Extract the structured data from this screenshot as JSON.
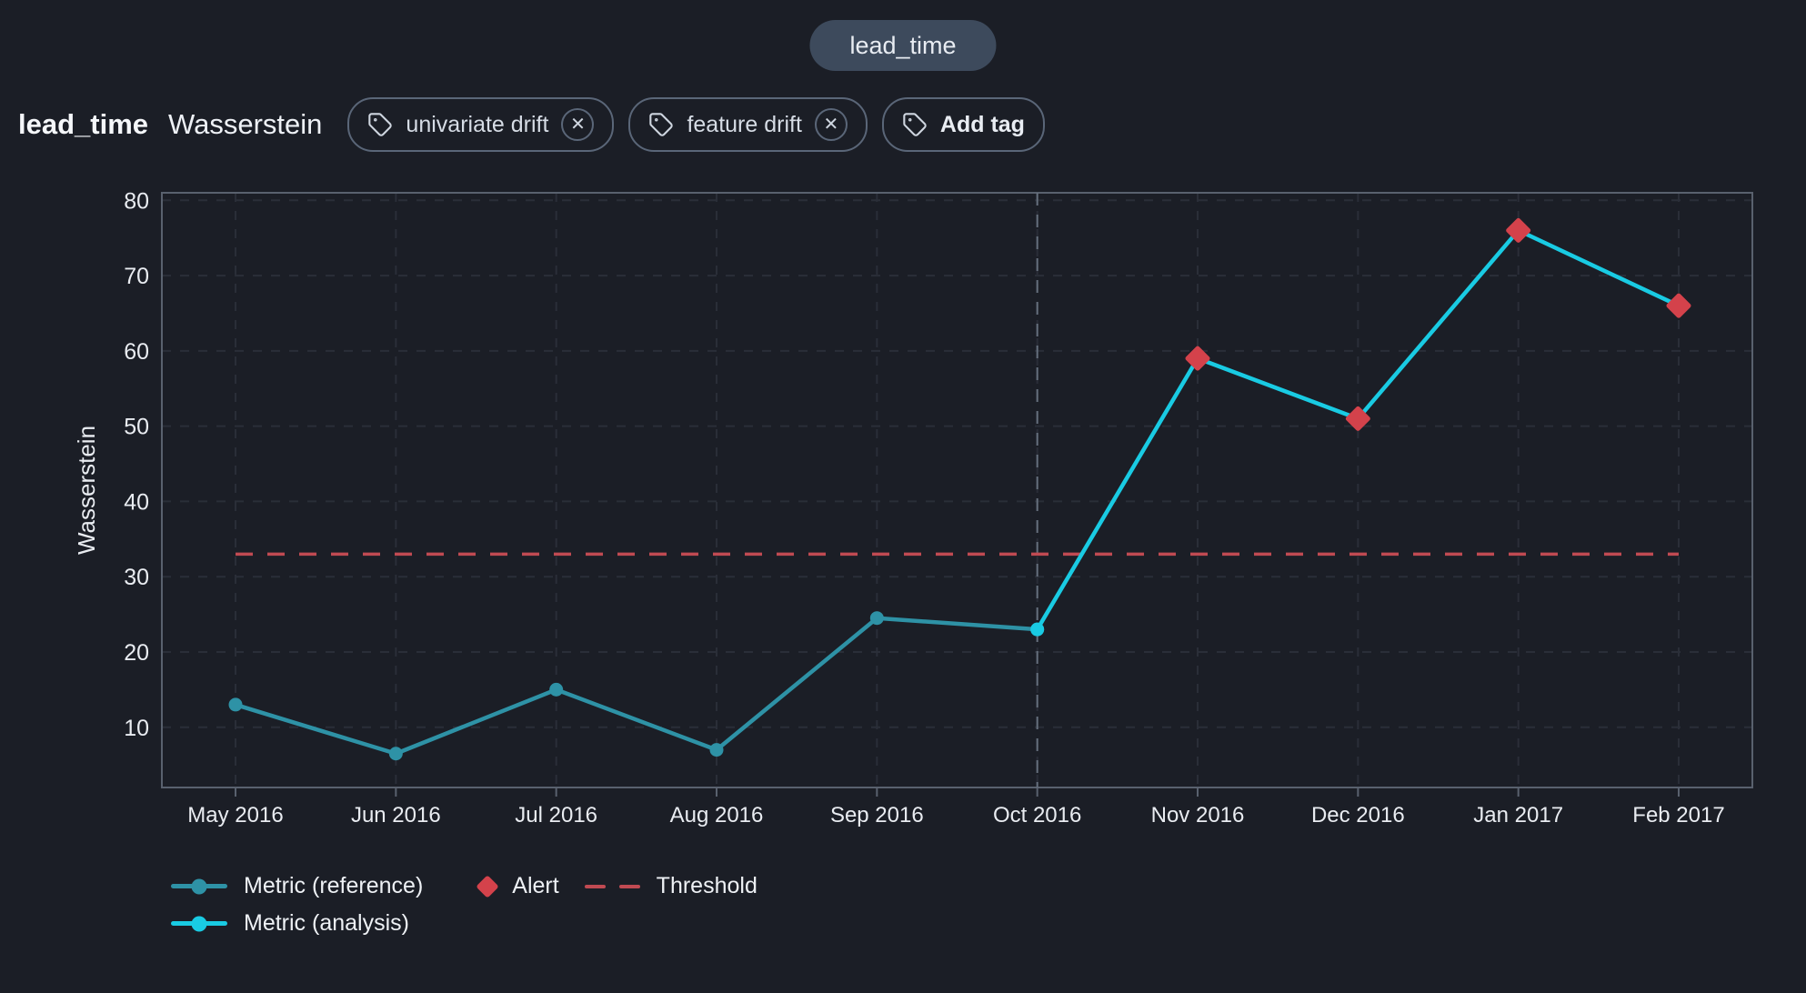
{
  "header": {
    "chip": "lead_time",
    "title": "lead_time",
    "metric": "Wasserstein",
    "tags": [
      {
        "label": "univariate drift",
        "close": "✕"
      },
      {
        "label": "feature drift",
        "close": "✕"
      }
    ],
    "add_tag_label": "Add tag"
  },
  "chart_data": {
    "type": "line",
    "ylabel": "Wasserstein",
    "x_labels": [
      "May 2016",
      "Jun 2016",
      "Jul 2016",
      "Aug 2016",
      "Sep 2016",
      "Oct 2016",
      "Nov 2016",
      "Dec 2016",
      "Jan 2017",
      "Feb 2017"
    ],
    "y_ticks": [
      10,
      20,
      30,
      40,
      50,
      60,
      70,
      80
    ],
    "ylim": [
      2,
      81
    ],
    "grid": true,
    "legend_position": "bottom-left",
    "series": [
      {
        "name": "Metric (reference)",
        "color": "#2e92a6",
        "x": [
          0,
          1,
          2,
          3,
          4,
          5
        ],
        "values": [
          13,
          6.5,
          15,
          7,
          24.5,
          23
        ]
      },
      {
        "name": "Metric (analysis)",
        "color": "#19cbe3",
        "x": [
          5,
          6,
          7,
          8,
          9
        ],
        "values": [
          23,
          59,
          51,
          76,
          66
        ]
      }
    ],
    "alerts": {
      "name": "Alert",
      "color": "#d4424b",
      "points": [
        {
          "x": 6,
          "value": 59
        },
        {
          "x": 7,
          "value": 51
        },
        {
          "x": 8,
          "value": 76
        },
        {
          "x": 9,
          "value": 66
        }
      ]
    },
    "threshold": {
      "name": "Threshold",
      "color": "#c04a52",
      "value": 33
    },
    "boundary_x": 5,
    "colors": {
      "background": "#1b1e26",
      "border": "#59616e",
      "grid": "#2a2e38",
      "boundary": "#66707e",
      "text": "#e9ecf1"
    }
  }
}
